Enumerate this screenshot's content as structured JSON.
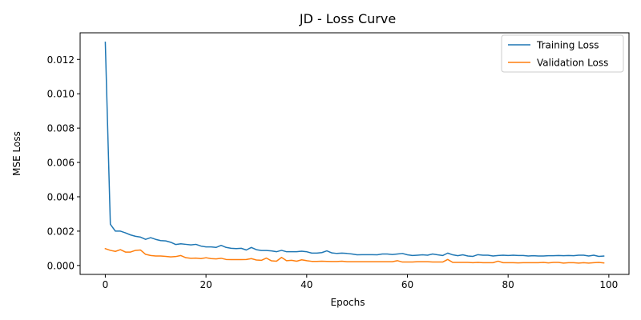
{
  "chart_data": {
    "type": "line",
    "title": "JD - Loss Curve",
    "xlabel": "Epochs",
    "ylabel": "MSE Loss",
    "xlim": [
      -5,
      104
    ],
    "ylim": [
      -0.00052,
      0.01355
    ],
    "x_ticks": [
      0,
      20,
      40,
      60,
      80,
      100
    ],
    "x_tick_labels": [
      "0",
      "20",
      "40",
      "60",
      "80",
      "100"
    ],
    "y_ticks": [
      0.0,
      0.002,
      0.004,
      0.006,
      0.008,
      0.01,
      0.012
    ],
    "y_tick_labels": [
      "0.000",
      "0.002",
      "0.004",
      "0.006",
      "0.008",
      "0.010",
      "0.012"
    ],
    "grid": false,
    "legend_position": "top-right",
    "x": [
      0,
      1,
      2,
      3,
      4,
      5,
      6,
      7,
      8,
      9,
      10,
      11,
      12,
      13,
      14,
      15,
      16,
      17,
      18,
      19,
      20,
      21,
      22,
      23,
      24,
      25,
      26,
      27,
      28,
      29,
      30,
      31,
      32,
      33,
      34,
      35,
      36,
      37,
      38,
      39,
      40,
      41,
      42,
      43,
      44,
      45,
      46,
      47,
      48,
      49,
      50,
      51,
      52,
      53,
      54,
      55,
      56,
      57,
      58,
      59,
      60,
      61,
      62,
      63,
      64,
      65,
      66,
      67,
      68,
      69,
      70,
      71,
      72,
      73,
      74,
      75,
      76,
      77,
      78,
      79,
      80,
      81,
      82,
      83,
      84,
      85,
      86,
      87,
      88,
      89,
      90,
      91,
      92,
      93,
      94,
      95,
      96,
      97,
      98,
      99
    ],
    "series": [
      {
        "name": "Training Loss",
        "color": "#1f77b4",
        "values": [
          0.013,
          0.0024,
          0.002,
          0.002,
          0.0019,
          0.00178,
          0.0017,
          0.00165,
          0.00152,
          0.00162,
          0.00152,
          0.00145,
          0.00143,
          0.00135,
          0.00122,
          0.00126,
          0.00123,
          0.0012,
          0.00123,
          0.00113,
          0.00108,
          0.00108,
          0.00105,
          0.00117,
          0.00105,
          0.001,
          0.00098,
          0.001,
          0.0009,
          0.00105,
          0.00092,
          0.00087,
          0.00087,
          0.00085,
          0.0008,
          0.00088,
          0.0008,
          0.0008,
          0.0008,
          0.00083,
          0.0008,
          0.00072,
          0.00072,
          0.00075,
          0.00085,
          0.00073,
          0.0007,
          0.00072,
          0.0007,
          0.00067,
          0.00062,
          0.00063,
          0.00063,
          0.00063,
          0.00062,
          0.00067,
          0.00067,
          0.00064,
          0.00067,
          0.0007,
          0.00062,
          0.00058,
          0.0006,
          0.00062,
          0.0006,
          0.00067,
          0.00062,
          0.00058,
          0.00072,
          0.00062,
          0.00057,
          0.00062,
          0.00055,
          0.00053,
          0.00063,
          0.0006,
          0.0006,
          0.00055,
          0.00058,
          0.0006,
          0.00058,
          0.0006,
          0.00058,
          0.00058,
          0.00055,
          0.00057,
          0.00055,
          0.00055,
          0.00057,
          0.00057,
          0.00058,
          0.00057,
          0.00058,
          0.00057,
          0.0006,
          0.0006,
          0.00055,
          0.0006,
          0.00053,
          0.00055
        ]
      },
      {
        "name": "Validation Loss",
        "color": "#ff7f0e",
        "values": [
          0.00098,
          0.00088,
          0.00082,
          0.00092,
          0.00078,
          0.00078,
          0.00088,
          0.0009,
          0.00065,
          0.00058,
          0.00055,
          0.00055,
          0.00053,
          0.0005,
          0.00052,
          0.00058,
          0.00045,
          0.00042,
          0.00043,
          0.0004,
          0.00045,
          0.0004,
          0.00038,
          0.00042,
          0.00035,
          0.00034,
          0.00034,
          0.00034,
          0.00035,
          0.0004,
          0.00032,
          0.0003,
          0.00043,
          0.00027,
          0.00025,
          0.00047,
          0.00028,
          0.0003,
          0.00025,
          0.00033,
          0.00028,
          0.00024,
          0.00024,
          0.00025,
          0.00024,
          0.00023,
          0.00023,
          0.00025,
          0.00022,
          0.00022,
          0.00022,
          0.00022,
          0.00022,
          0.00022,
          0.00022,
          0.00022,
          0.00022,
          0.00022,
          0.00028,
          0.0002,
          0.0002,
          0.0002,
          0.00022,
          0.00022,
          0.00022,
          0.0002,
          0.0002,
          0.0002,
          0.00035,
          0.00018,
          0.00018,
          0.00018,
          0.00018,
          0.00016,
          0.00018,
          0.00016,
          0.00016,
          0.00016,
          0.00025,
          0.00016,
          0.00016,
          0.00016,
          0.00015,
          0.00016,
          0.00016,
          0.00016,
          0.00016,
          0.00018,
          0.00015,
          0.00018,
          0.00018,
          0.00014,
          0.00016,
          0.00016,
          0.00014,
          0.00016,
          0.00014,
          0.00016,
          0.00018,
          0.00015
        ]
      }
    ]
  }
}
